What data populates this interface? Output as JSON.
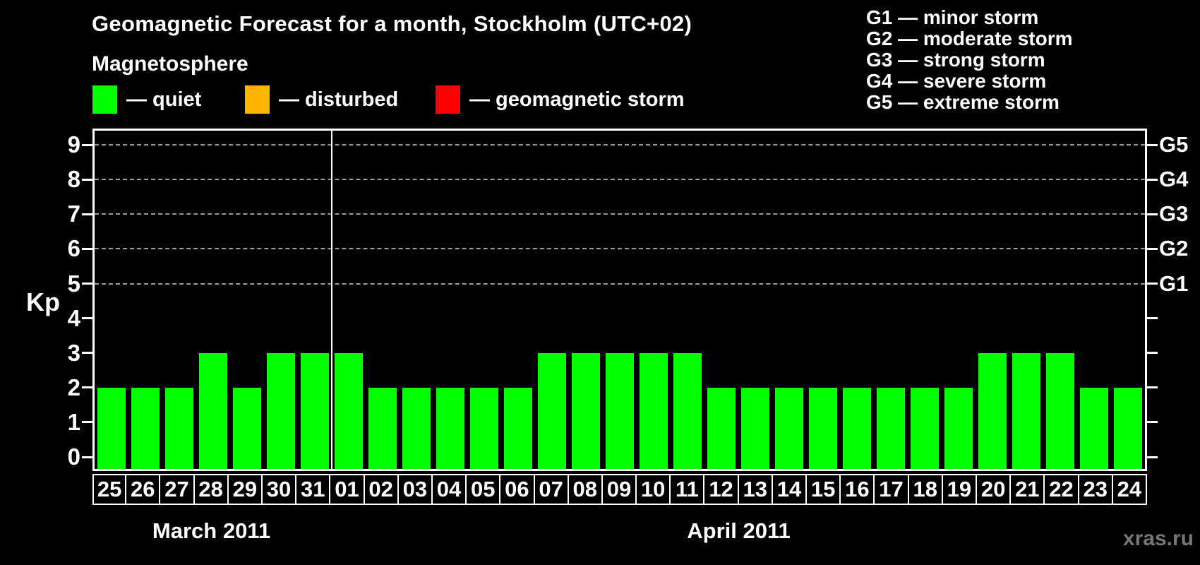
{
  "title": "Geomagnetic Forecast for a month, Stockholm (UTC+02)",
  "legend": {
    "heading": "Magnetosphere",
    "items": [
      {
        "name": "quiet",
        "label": "— quiet",
        "color": "#00ff00"
      },
      {
        "name": "disturbed",
        "label": "— disturbed",
        "color": "#ffb400"
      },
      {
        "name": "geomagnetic-storm",
        "label": "— geomagnetic storm",
        "color": "#ff0000"
      }
    ]
  },
  "g_scale_legend": [
    "G1 — minor storm",
    "G2 — moderate storm",
    "G3 — strong storm",
    "G4 — severe storm",
    "G5 — extreme storm"
  ],
  "watermark": "xras.ru",
  "chart_data": {
    "type": "bar",
    "title": "Geomagnetic Forecast for a month, Stockholm (UTC+02)",
    "ylabel": "Kp",
    "ylim": [
      0,
      9
    ],
    "y_ticks": [
      "0",
      "1",
      "2",
      "3",
      "4",
      "5",
      "6",
      "7",
      "8",
      "9"
    ],
    "right_axis": [
      {
        "label": "G1",
        "kp": 5
      },
      {
        "label": "G2",
        "kp": 6
      },
      {
        "label": "G3",
        "kp": 7
      },
      {
        "label": "G4",
        "kp": 8
      },
      {
        "label": "G5",
        "kp": 9
      }
    ],
    "grid": "horizontal dashed lines at Kp 5,6,7,8,9",
    "legend_position": "top",
    "bar_color": "#00ff00",
    "bar_status": "quiet",
    "months": [
      {
        "label": "March 2011",
        "days": [
          "25",
          "26",
          "27",
          "28",
          "29",
          "30",
          "31"
        ],
        "values": [
          2,
          2,
          2,
          3,
          2,
          3,
          3
        ]
      },
      {
        "label": "April 2011",
        "days": [
          "01",
          "02",
          "03",
          "04",
          "05",
          "06",
          "07",
          "08",
          "09",
          "10",
          "11",
          "12",
          "13",
          "14",
          "15",
          "16",
          "17",
          "18",
          "19",
          "20",
          "21",
          "22",
          "23",
          "24"
        ],
        "values": [
          3,
          2,
          2,
          2,
          2,
          2,
          3,
          3,
          3,
          3,
          3,
          2,
          2,
          2,
          2,
          2,
          2,
          2,
          2,
          3,
          3,
          3,
          2,
          2
        ]
      }
    ]
  }
}
